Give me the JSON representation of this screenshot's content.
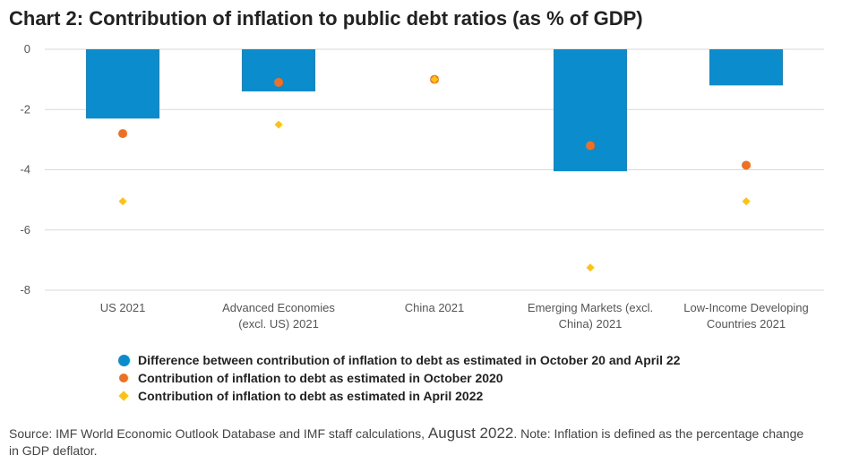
{
  "title": "Chart 2: Contribution of inflation to public debt ratios (as % of GDP)",
  "chart_data": {
    "type": "bar",
    "title": "Chart 2: Contribution of inflation to public debt ratios (as % of GDP)",
    "categories": [
      [
        "US 2021"
      ],
      [
        "Advanced Economies",
        "(excl. US) 2021"
      ],
      [
        "China 2021"
      ],
      [
        "Emerging Markets (excl.",
        "China) 2021"
      ],
      [
        "Low-Income Developing",
        "Countries 2021"
      ]
    ],
    "ylim": [
      -8,
      0
    ],
    "yticks": [
      0,
      -2,
      -4,
      -6,
      -8
    ],
    "grid": true,
    "legend_position": "bottom",
    "series": [
      {
        "name": "Difference between contribution of inflation to debt as estimated in October 20 and April 22",
        "kind": "bar",
        "color": "#0b8ccc",
        "values": [
          -2.3,
          -1.4,
          null,
          -4.05,
          -1.2
        ]
      },
      {
        "name": "Contribution of inflation to debt as estimated in October 2020",
        "kind": "circle",
        "color": "#f07022",
        "values": [
          -2.8,
          -1.1,
          -1.0,
          -3.2,
          -3.85
        ]
      },
      {
        "name": "Contribution of inflation to debt as estimated in April 2022",
        "kind": "diamond",
        "color": "#ffc20e",
        "values": [
          -5.05,
          -2.5,
          -1.0,
          -7.25,
          -5.05
        ]
      }
    ]
  },
  "source": {
    "part1": "Source: IMF World Economic Outlook Database and IMF staff calculations, ",
    "part2": "August 2022",
    "part3": ". Note: Inflation is defined as the percentage change in GDP deflator."
  }
}
